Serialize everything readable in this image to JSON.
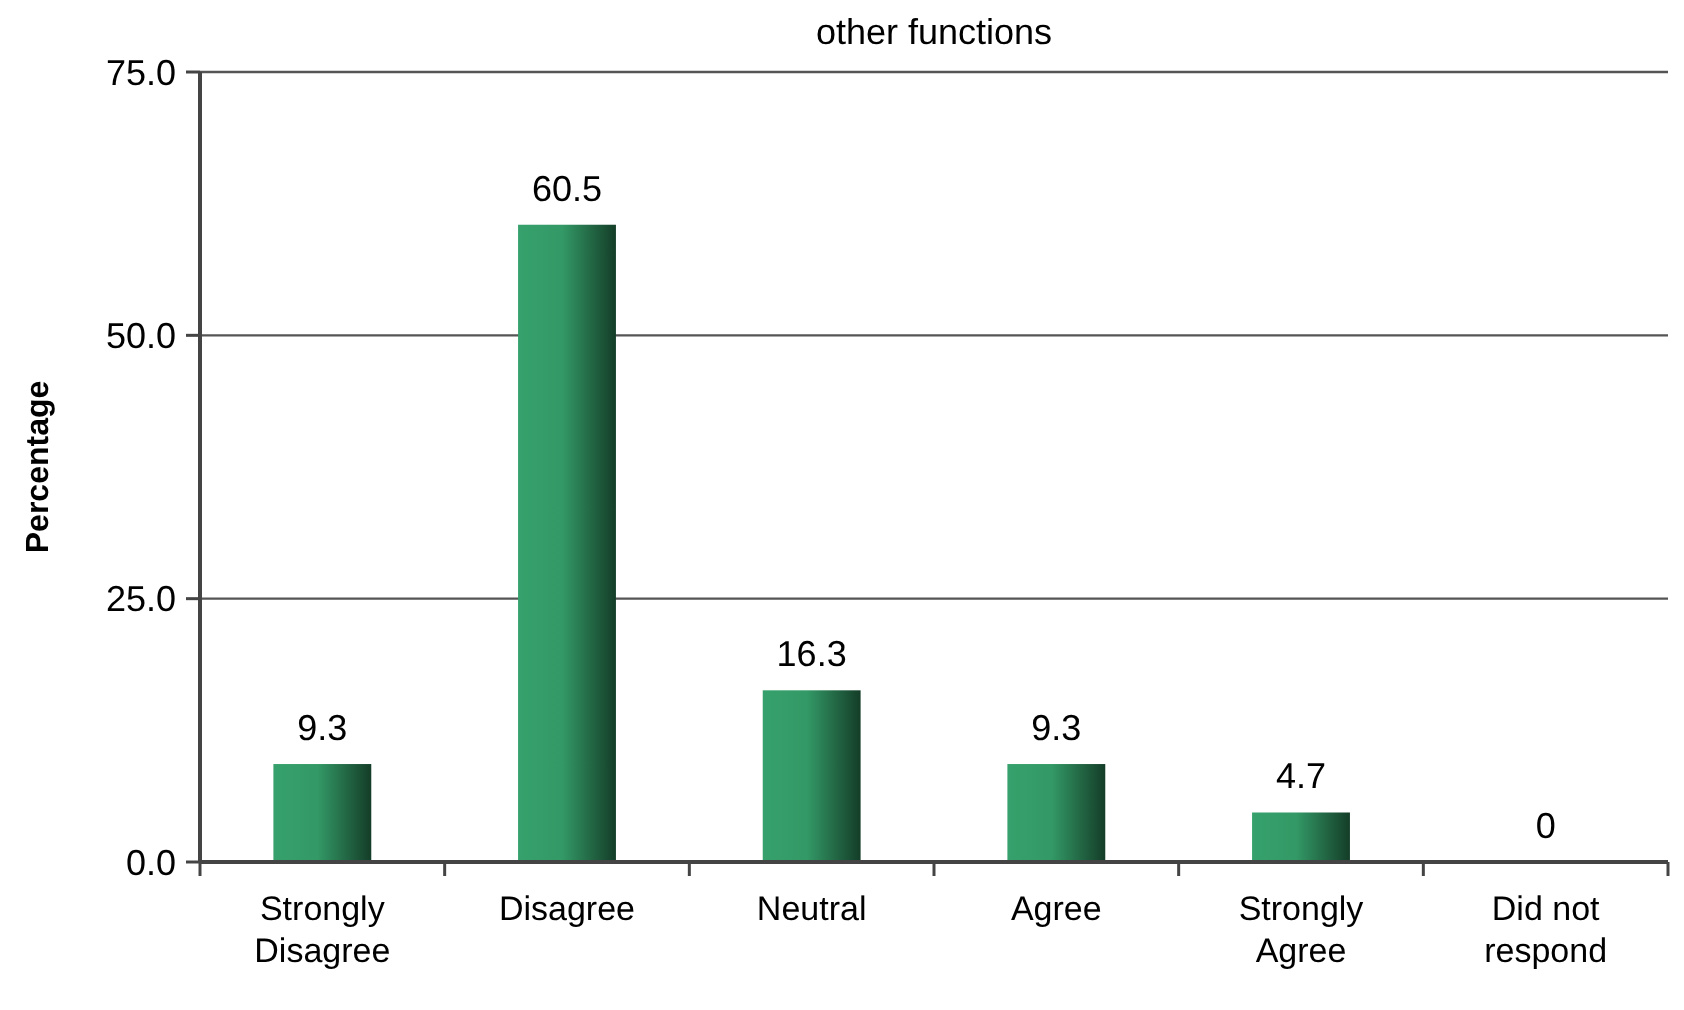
{
  "chart_data": {
    "type": "bar",
    "title": "other functions",
    "ylabel": "Percentage",
    "categories": [
      "Strongly Disagree",
      "Disagree",
      "Neutral",
      "Agree",
      "Strongly Agree",
      "Did not respond"
    ],
    "values": [
      9.3,
      60.5,
      16.3,
      9.3,
      4.7,
      0
    ],
    "color": "#339966",
    "ylim": [
      0,
      75
    ],
    "yticks": [
      {
        "value": 0,
        "label": "0.0"
      },
      {
        "value": 25,
        "label": "25.0"
      },
      {
        "value": 50,
        "label": "50.0"
      },
      {
        "value": 75,
        "label": "75.0"
      }
    ],
    "grid": "y",
    "data_labels": true
  }
}
